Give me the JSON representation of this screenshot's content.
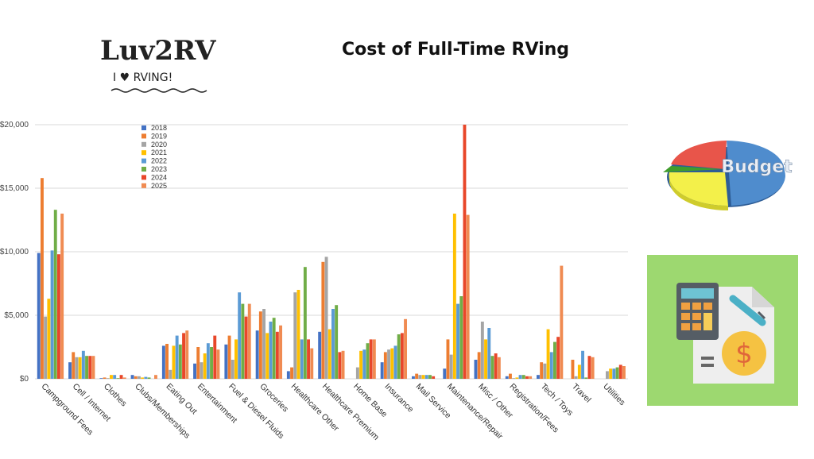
{
  "logo": {
    "name": "Luv2RV",
    "tagline": "I ♥ RVING!"
  },
  "header": {
    "title": "Cost of Full-Time RVing"
  },
  "side_images": {
    "pie_label": "Budget",
    "card_icon": "calculator-document-dollar-icon"
  },
  "colors": {
    "2018": "#4472c4",
    "2019": "#ed7d31",
    "2020": "#a5a5a5",
    "2021": "#ffc000",
    "2022": "#5b9bd5",
    "2023": "#70ad47",
    "2024": "#e8472a",
    "2025": "#f08b52"
  },
  "chart_data": {
    "type": "bar",
    "title": "Cost of Full-Time RVing",
    "xlabel": "",
    "ylabel": "",
    "ylim": [
      0,
      20000
    ],
    "yticks": [
      0,
      5000,
      10000,
      15000,
      20000
    ],
    "ytick_labels": [
      "$0",
      "$5,000",
      "$10,000",
      "$15,000",
      "$20,000"
    ],
    "grid": true,
    "legend_position": "top-left",
    "categories": [
      "Campground Fees",
      "Cell / Internet",
      "Clothes",
      "Clubs/Memberships",
      "Eating Out",
      "Entertainment",
      "Fuel & Diesel Fluids",
      "Groceries",
      "Healthcare Other",
      "Healthcare Premium",
      "Home Base",
      "Insurance",
      "Mail Service",
      "Maintenance/Repair",
      "Misc / Other",
      "Registration/Fees",
      "Tech / Toys",
      "Travel",
      "Utilities"
    ],
    "series": [
      {
        "name": "2018",
        "values": [
          9900,
          1300,
          50,
          300,
          2600,
          1200,
          2700,
          3800,
          600,
          3700,
          0,
          1300,
          200,
          800,
          1500,
          200,
          300,
          0,
          0
        ]
      },
      {
        "name": "2019",
        "values": [
          15800,
          2100,
          100,
          200,
          2750,
          2500,
          3400,
          5300,
          900,
          9200,
          0,
          2100,
          400,
          3100,
          2100,
          400,
          1300,
          1500,
          0
        ]
      },
      {
        "name": "2020",
        "values": [
          4900,
          1700,
          50,
          200,
          700,
          1300,
          1500,
          5500,
          6800,
          9600,
          900,
          2300,
          300,
          1900,
          4500,
          50,
          1200,
          200,
          600
        ]
      },
      {
        "name": "2021",
        "values": [
          6300,
          1700,
          300,
          100,
          2600,
          2000,
          3100,
          3600,
          7000,
          3900,
          2200,
          2400,
          300,
          13000,
          3100,
          100,
          3900,
          1100,
          800
        ]
      },
      {
        "name": "2022",
        "values": [
          10100,
          2200,
          300,
          150,
          3400,
          2800,
          6800,
          4500,
          3100,
          5500,
          2300,
          2600,
          300,
          5900,
          4000,
          300,
          2100,
          2200,
          800
        ]
      },
      {
        "name": "2023",
        "values": [
          13300,
          1800,
          50,
          100,
          2700,
          2500,
          5900,
          4800,
          8800,
          5800,
          2800,
          3500,
          300,
          6500,
          1800,
          300,
          2900,
          100,
          900
        ]
      },
      {
        "name": "2024",
        "values": [
          9800,
          1800,
          300,
          0,
          3600,
          3400,
          4900,
          3700,
          3100,
          2100,
          3100,
          3600,
          200,
          20000,
          2000,
          200,
          3300,
          1800,
          1100
        ]
      },
      {
        "name": "2025",
        "values": [
          13000,
          1800,
          100,
          300,
          3800,
          2300,
          5900,
          4200,
          2400,
          2200,
          3100,
          4700,
          0,
          12900,
          1700,
          200,
          8900,
          1700,
          1000
        ]
      }
    ]
  }
}
